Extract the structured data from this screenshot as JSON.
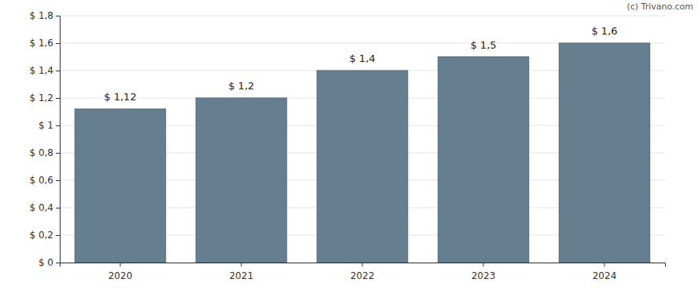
{
  "chart_data": {
    "type": "bar",
    "annotations": [
      "(c) Trivano.com"
    ],
    "categories": [
      "2020",
      "2021",
      "2022",
      "2023",
      "2024"
    ],
    "values": [
      1.12,
      1.2,
      1.4,
      1.5,
      1.6
    ],
    "value_labels": [
      "$ 1,12",
      "$ 1,2",
      "$ 1,4",
      "$ 1,5",
      "$ 1,6"
    ],
    "data_labels": true,
    "color": "#657f91",
    "ylim": [
      0,
      1.8
    ],
    "yticks": [
      {
        "value": 0,
        "label": "$ 0"
      },
      {
        "value": 0.2,
        "label": "$ 0,2"
      },
      {
        "value": 0.4,
        "label": "$ 0,4"
      },
      {
        "value": 0.6,
        "label": "$ 0,6"
      },
      {
        "value": 0.8,
        "label": "$ 0,8"
      },
      {
        "value": 1,
        "label": "$ 1"
      },
      {
        "value": 1.2,
        "label": "$ 1,2"
      },
      {
        "value": 1.4,
        "label": "$ 1,4"
      },
      {
        "value": 1.6,
        "label": "$ 1,6"
      },
      {
        "value": 1.8,
        "label": "$ 1,8"
      }
    ],
    "grid": true
  }
}
